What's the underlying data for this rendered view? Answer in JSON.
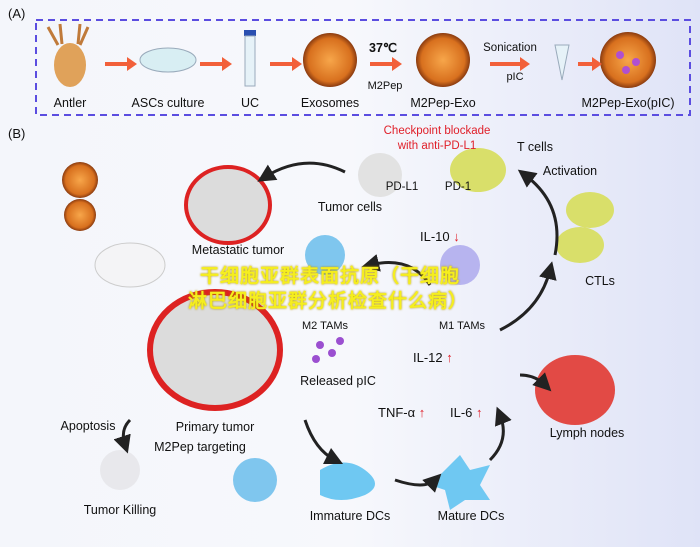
{
  "panel_a": {
    "label": "(A)",
    "steps": [
      "Antler",
      "ASCs culture",
      "UC",
      "Exosomes",
      "M2Pep-Exo",
      "M2Pep-Exo(pIC)"
    ],
    "temperature": "37℃",
    "peptide": "M2Pep",
    "sonication": "Sonication",
    "pic": "pIC"
  },
  "panel_b": {
    "label": "(B)",
    "checkpoint_line1": "Checkpoint blockade",
    "checkpoint_line2": "with anti-PD-L1",
    "t_cells": "T cells",
    "pd_l1": "PD-L1",
    "pd_1": "PD-1",
    "tumor_cells": "Tumor cells",
    "activation": "Activation",
    "metastatic_tumor": "Metastatic tumor",
    "il10": "IL-10",
    "ctls": "CTLs",
    "m2_tams": "M2 TAMs",
    "m1_tams": "M1 TAMs",
    "released_pic": "Released pIC",
    "il12": "IL-12",
    "tnf": "TNF-α",
    "il6": "IL-6",
    "lymph_nodes": "Lymph nodes",
    "apoptosis": "Apoptosis",
    "primary_tumor": "Primary tumor",
    "m2pep_targeting": "M2Pep targeting",
    "tumor_killing": "Tumor Killing",
    "immature_dcs": "Immature DCs",
    "mature_dcs": "Mature DCs",
    "down_arrow": "↓",
    "up_arrow": "↑"
  },
  "overlay": {
    "line1": "干细胞亚群表面抗原（干细胞",
    "line2": "淋巴细胞亚群分析检查什么病）"
  },
  "colors": {
    "dashed_border": "#5b4de0",
    "arrow_orange": "#f2603a",
    "accent_red": "#e0202a",
    "overlay_yellow": "#f5ee1e"
  }
}
